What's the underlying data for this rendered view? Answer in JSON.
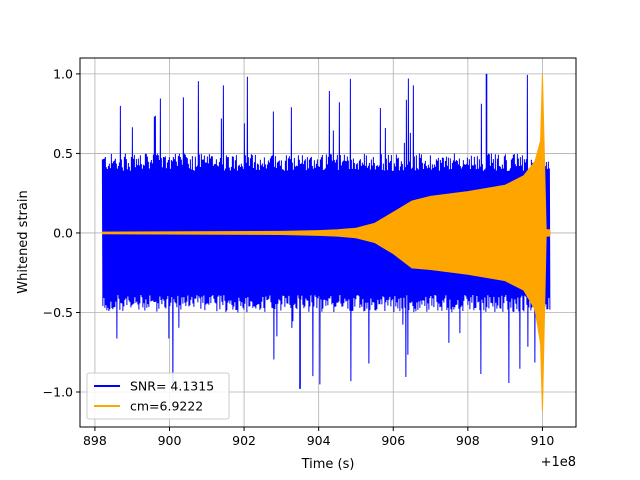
{
  "chart_data": {
    "type": "line",
    "title": "",
    "xlabel": "Time (s)",
    "ylabel": "Whitened strain",
    "x_offset_label": "+1e8",
    "xlim": [
      897.6,
      910.9
    ],
    "ylim": [
      -1.22,
      1.1
    ],
    "grid": true,
    "legend_position": "lower-left",
    "x_ticks": [
      {
        "value": 898,
        "label": "898"
      },
      {
        "value": 900,
        "label": "900"
      },
      {
        "value": 902,
        "label": "902"
      },
      {
        "value": 904,
        "label": "904"
      },
      {
        "value": 906,
        "label": "906"
      },
      {
        "value": 908,
        "label": "908"
      },
      {
        "value": 910,
        "label": "910"
      }
    ],
    "y_ticks": [
      {
        "value": -1.0,
        "label": "−1.0"
      },
      {
        "value": -0.5,
        "label": "−0.5"
      },
      {
        "value": 0.0,
        "label": "0.0"
      },
      {
        "value": 0.5,
        "label": "0.5"
      },
      {
        "value": 1.0,
        "label": "1.0"
      }
    ],
    "series": [
      {
        "name": "SNR= 4.1315",
        "color": "#0000ff",
        "x": [
          898.2,
          910.2
        ],
        "typical_abs_amplitude": 0.5,
        "peak_positive": 1.0,
        "peak_negative": -0.98
      },
      {
        "name": "cm=6.9222",
        "color": "#ffa500",
        "x_envelope": [
          898.2,
          903.0,
          904.0,
          904.5,
          905.0,
          905.5,
          906.0,
          906.5,
          907.0,
          908.0,
          909.0,
          909.5,
          909.8,
          909.95,
          910.0,
          910.1,
          910.2
        ],
        "envelope_pos": [
          0.005,
          0.01,
          0.015,
          0.02,
          0.03,
          0.06,
          0.13,
          0.2,
          0.23,
          0.26,
          0.3,
          0.36,
          0.45,
          0.58,
          1.0,
          0.02,
          0.02
        ],
        "envelope_neg": [
          -0.005,
          -0.01,
          -0.015,
          -0.02,
          -0.03,
          -0.06,
          -0.13,
          -0.22,
          -0.23,
          -0.26,
          -0.3,
          -0.36,
          -0.48,
          -0.7,
          -1.12,
          -0.02,
          -0.02
        ]
      }
    ]
  }
}
